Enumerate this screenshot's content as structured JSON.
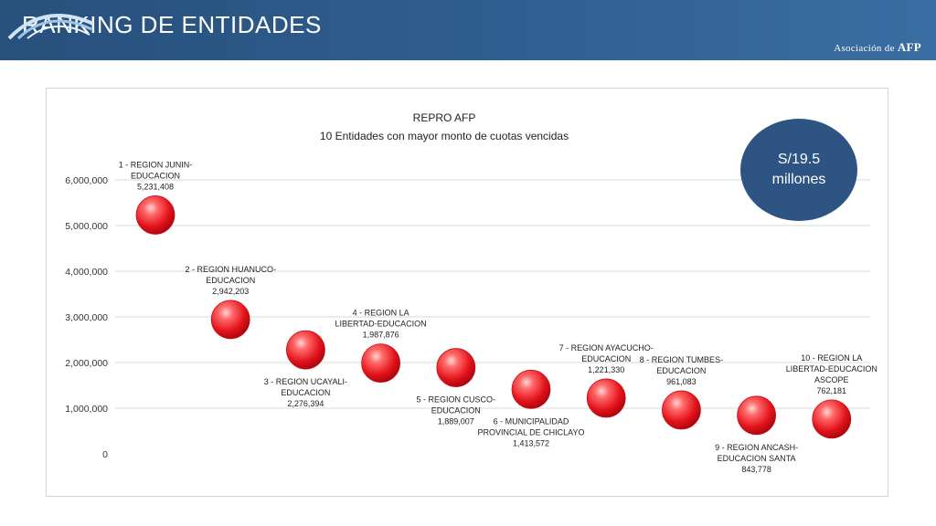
{
  "header": {
    "title": "RANKING DE ENTIDADES",
    "logo_text_small": "Asociación de",
    "logo_text_big": "AFP"
  },
  "badge": {
    "line1": "S/19.5",
    "line2": "millones"
  },
  "colors": {
    "header": "#2f5f90",
    "badge": "#2d5482",
    "bubble": "#e8202a"
  },
  "chart_data": {
    "type": "scatter",
    "title": "REPRO AFP",
    "subtitle": "10 Entidades con mayor monto de cuotas vencidas",
    "ylim": [
      0,
      6000000
    ],
    "yticks": [
      "0",
      "1,000,000",
      "2,000,000",
      "3,000,000",
      "4,000,000",
      "5,000,000",
      "6,000,000"
    ],
    "grid": true,
    "points": [
      {
        "x": 1,
        "y": 5231408,
        "label_lines": [
          "1 - REGION JUNIN-",
          "EDUCACION"
        ],
        "value_label": "5,231,408",
        "label_position": "above"
      },
      {
        "x": 2,
        "y": 2942203,
        "label_lines": [
          "2 - REGION HUANUCO-",
          "EDUCACION"
        ],
        "value_label": "2,942,203",
        "label_position": "above"
      },
      {
        "x": 3,
        "y": 2276394,
        "label_lines": [
          "3 - REGION UCAYALI-",
          "EDUCACION"
        ],
        "value_label": "2,276,394",
        "label_position": "below"
      },
      {
        "x": 4,
        "y": 1987876,
        "label_lines": [
          "4 - REGION LA",
          "LIBERTAD-EDUCACION"
        ],
        "value_label": "1,987,876",
        "label_position": "above"
      },
      {
        "x": 5,
        "y": 1889007,
        "label_lines": [
          "5 - REGION CUSCO-",
          "EDUCACION"
        ],
        "value_label": "1,889,007",
        "label_position": "below"
      },
      {
        "x": 6,
        "y": 1413572,
        "label_lines": [
          "6 - MUNICIPALIDAD",
          "PROVINCIAL DE CHICLAYO"
        ],
        "value_label": "1,413,572",
        "label_position": "below"
      },
      {
        "x": 7,
        "y": 1221330,
        "label_lines": [
          "7 - REGION AYACUCHO-",
          "EDUCACION"
        ],
        "value_label": "1,221,330",
        "label_position": "above"
      },
      {
        "x": 8,
        "y": 961083,
        "label_lines": [
          "8 - REGION TUMBES-",
          "EDUCACION"
        ],
        "value_label": "961,083",
        "label_position": "above"
      },
      {
        "x": 9,
        "y": 843778,
        "label_lines": [
          "9 - REGION ANCASH-",
          "EDUCACION SANTA"
        ],
        "value_label": "843,778",
        "label_position": "below"
      },
      {
        "x": 10,
        "y": 762181,
        "label_lines": [
          "10 - REGION LA",
          "LIBERTAD-EDUCACION",
          "ASCOPE"
        ],
        "value_label": "762,181",
        "label_position": "above"
      }
    ]
  }
}
